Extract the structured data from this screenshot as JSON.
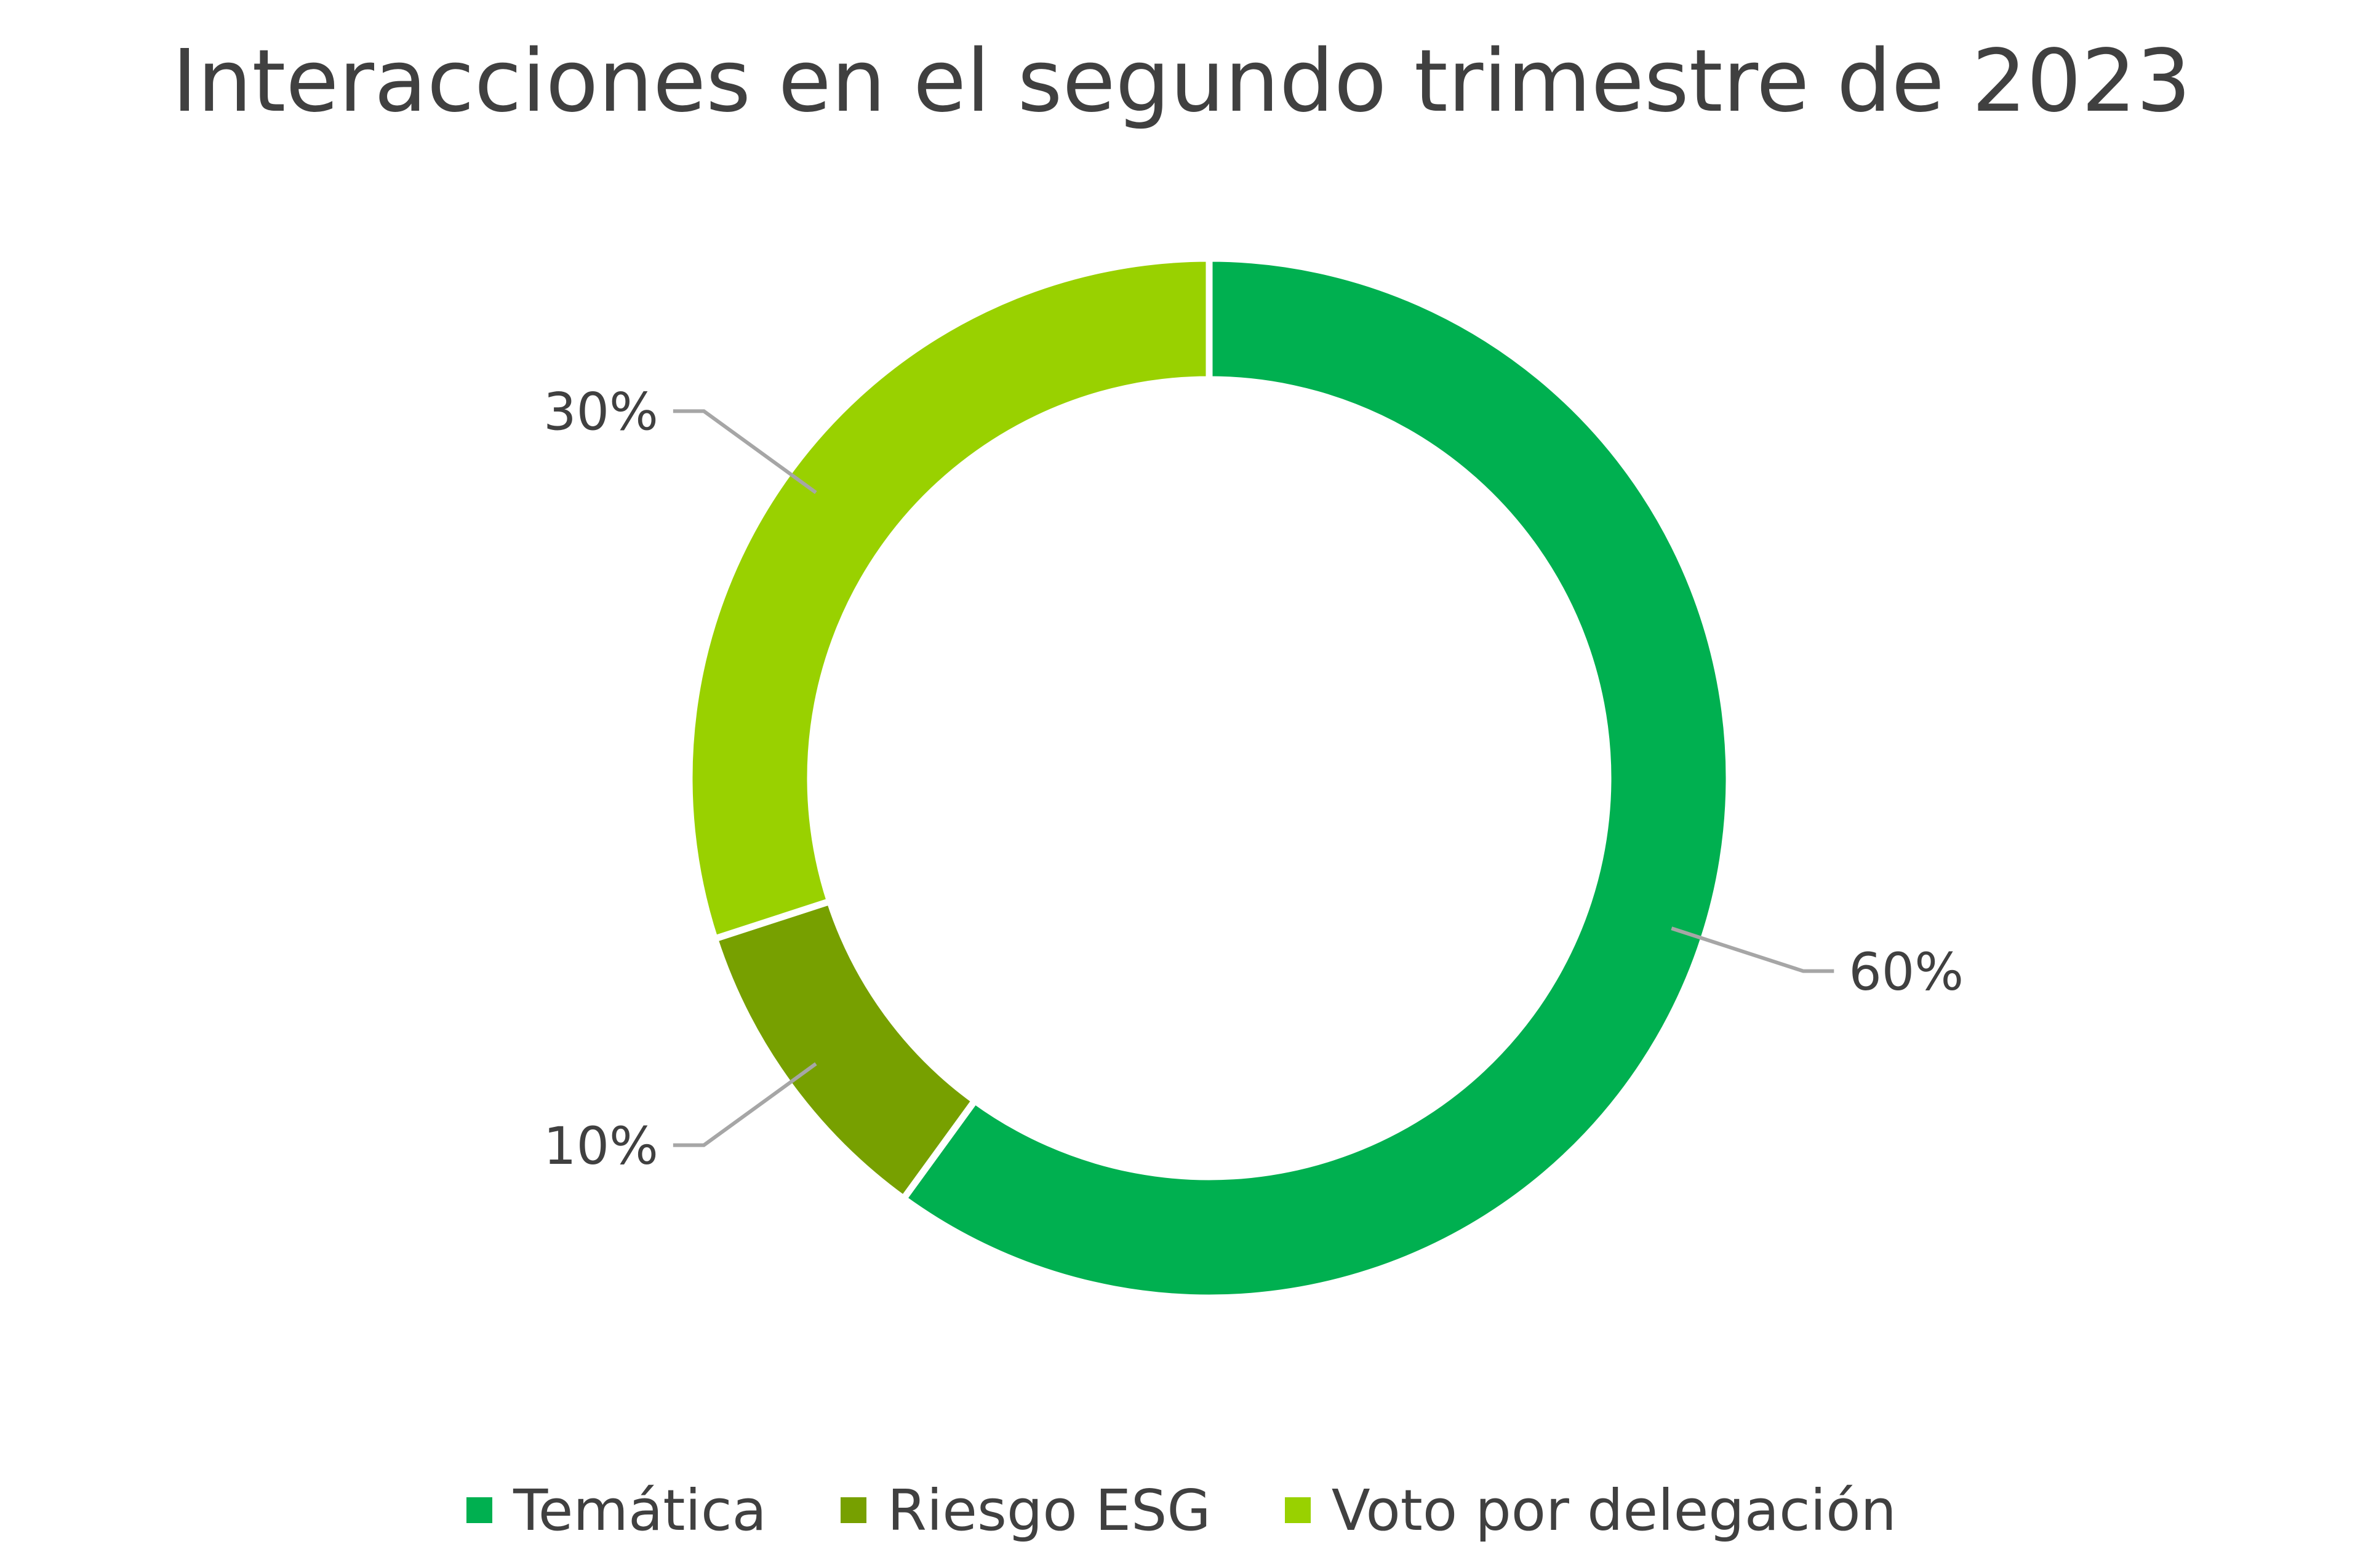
{
  "chart_data": {
    "type": "pie",
    "variant": "donut",
    "title": "Interacciones en el segundo trimestre de 2023",
    "categories": [
      "Temática",
      "Riesgo ESG",
      "Voto por delegación"
    ],
    "values": [
      60,
      10,
      30
    ],
    "data_labels": [
      "60%",
      "10%",
      "30%"
    ],
    "colors": [
      "#00b050",
      "#77a000",
      "#99d100"
    ],
    "legend_position": "bottom",
    "start_angle_deg": 0,
    "direction": "clockwise"
  }
}
